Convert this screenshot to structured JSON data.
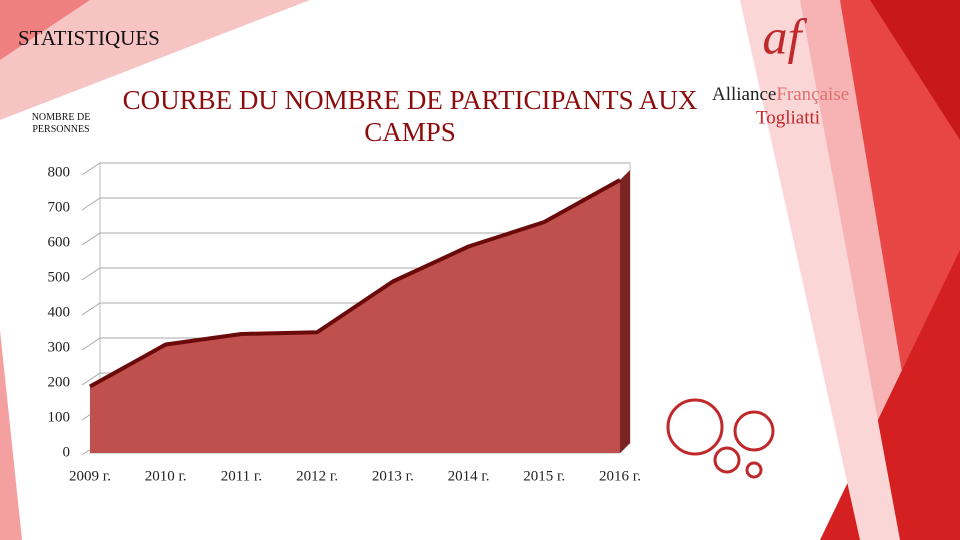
{
  "slide": {
    "heading": "STATISTIQUES",
    "logo_mark": "af",
    "logo_name_1": "Alliance",
    "logo_name_2": "Française",
    "logo_city": "Togliatti"
  },
  "chart_data": {
    "type": "area",
    "title": "COURBE DU NOMBRE DE PARTICIPANTS AUX CAMPS",
    "y_label": "NOMBRE DE PERSONNES",
    "categories": [
      "2009 г.",
      "2010 г.",
      "2011 г.",
      "2012 г.",
      "2013 г.",
      "2014 г.",
      "2015 г.",
      "2016 г."
    ],
    "values": [
      190,
      310,
      340,
      345,
      490,
      590,
      660,
      780
    ],
    "color": "#c0504d",
    "line_color": "#6b0a0a",
    "ylim": [
      0,
      800
    ],
    "yticks": [
      0,
      100,
      200,
      300,
      400,
      500,
      600,
      700,
      800
    ],
    "grid": true
  }
}
